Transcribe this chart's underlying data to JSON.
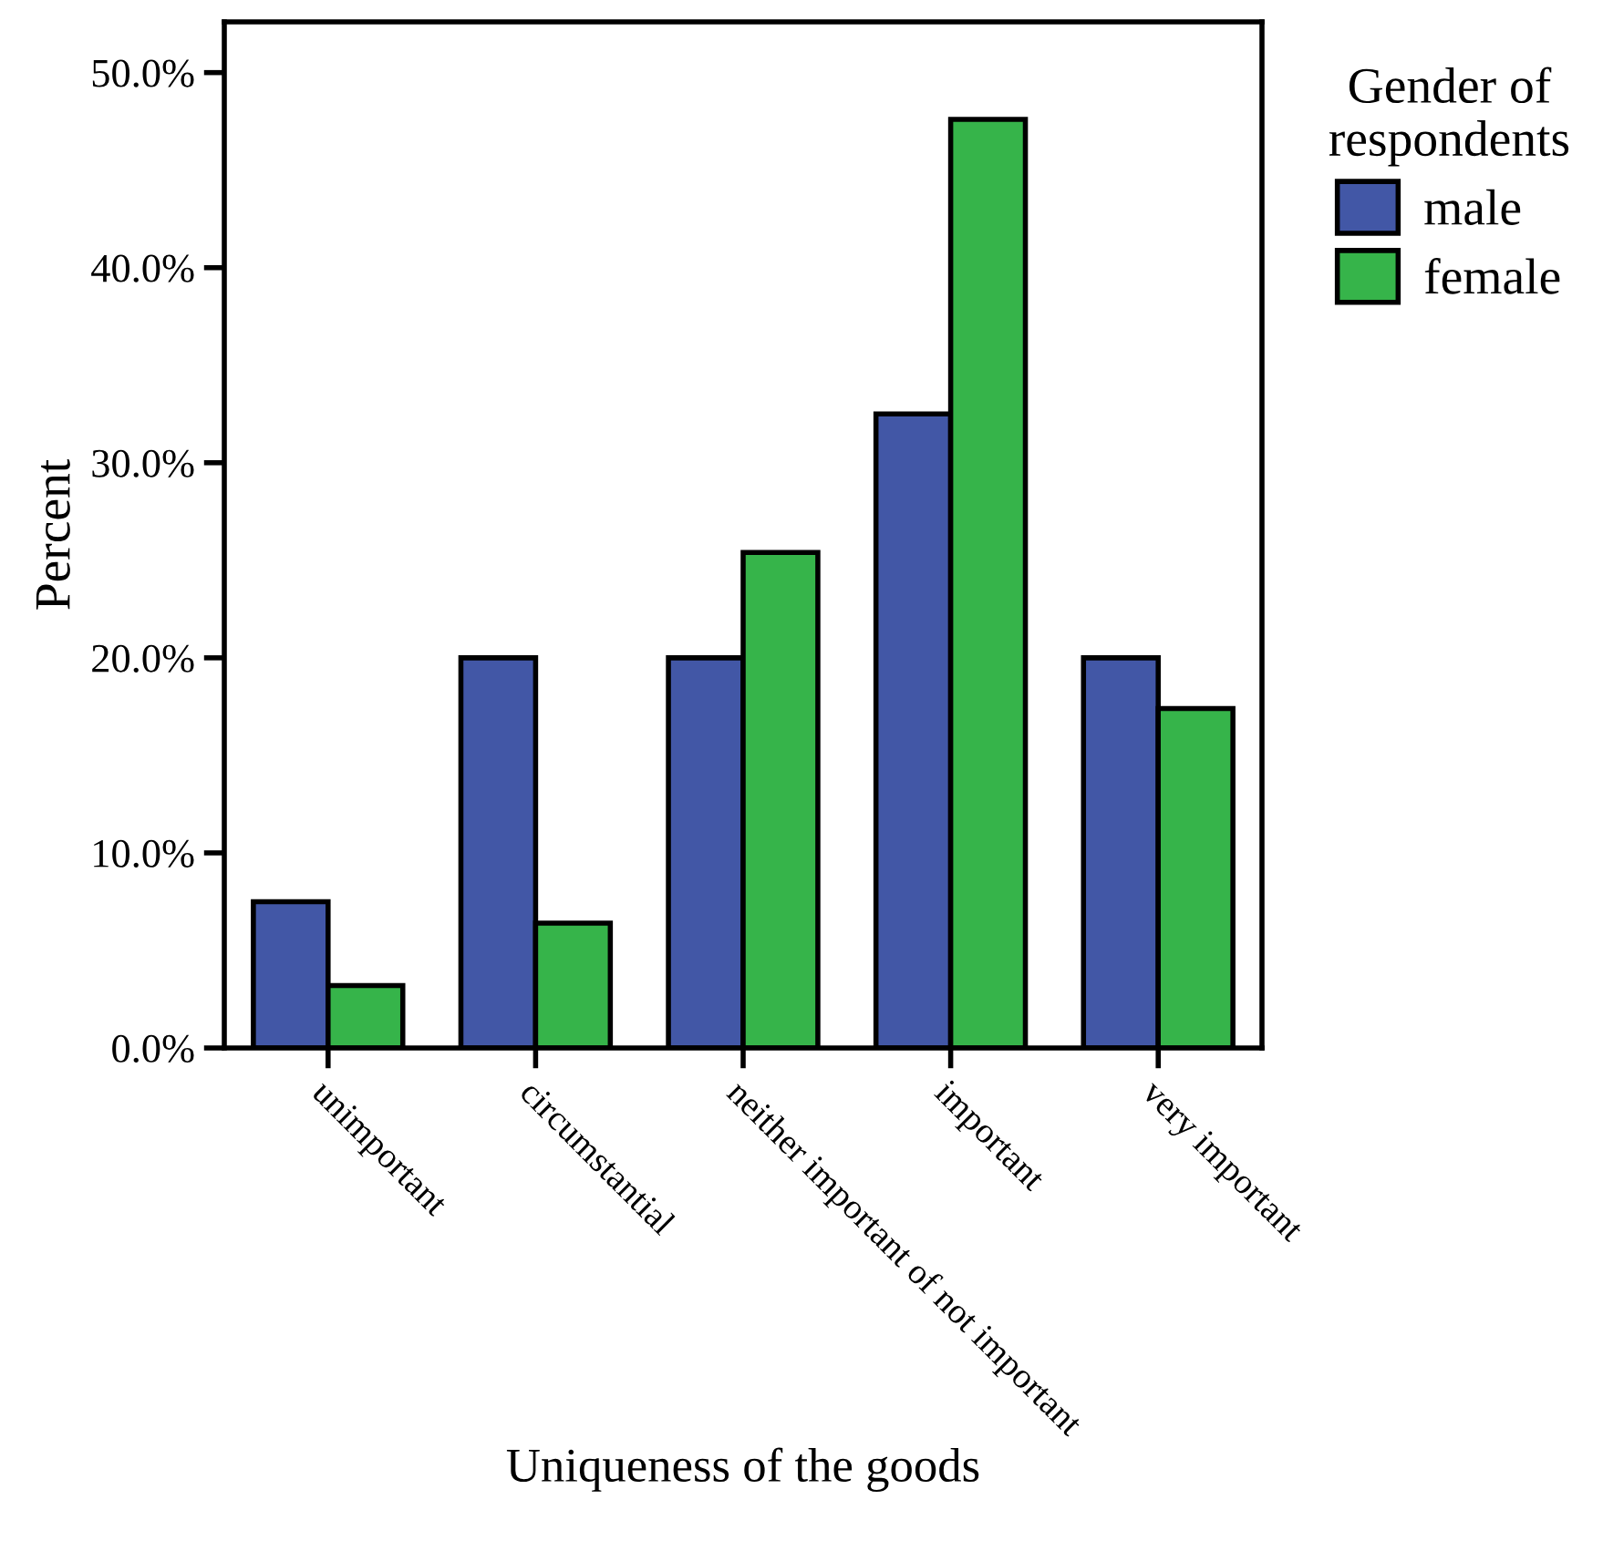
{
  "chart_data": {
    "type": "bar",
    "xlabel": "Uniqueness of the goods",
    "ylabel": "Percent",
    "legend_title": "Gender of\nrespondents",
    "legend": "top right",
    "categories": [
      "unimportant",
      "circumstantial",
      "neither important of not important",
      "important",
      "very important"
    ],
    "series": [
      {
        "name": "male",
        "color": "#4257a6",
        "values": [
          7.5,
          20.0,
          20.0,
          32.5,
          20.0
        ]
      },
      {
        "name": "female",
        "color": "#36b44a",
        "values": [
          3.2,
          6.4,
          25.4,
          47.6,
          17.4
        ]
      }
    ],
    "ylim": [
      0,
      52.6
    ],
    "yticks": [
      {
        "value": 0,
        "label": "0.0%"
      },
      {
        "value": 10,
        "label": "10.0%"
      },
      {
        "value": 20,
        "label": "20.0%"
      },
      {
        "value": 30,
        "label": "30.0%"
      },
      {
        "value": 40,
        "label": "40.0%"
      },
      {
        "value": 50,
        "label": "50.0%"
      }
    ],
    "grid": false
  }
}
